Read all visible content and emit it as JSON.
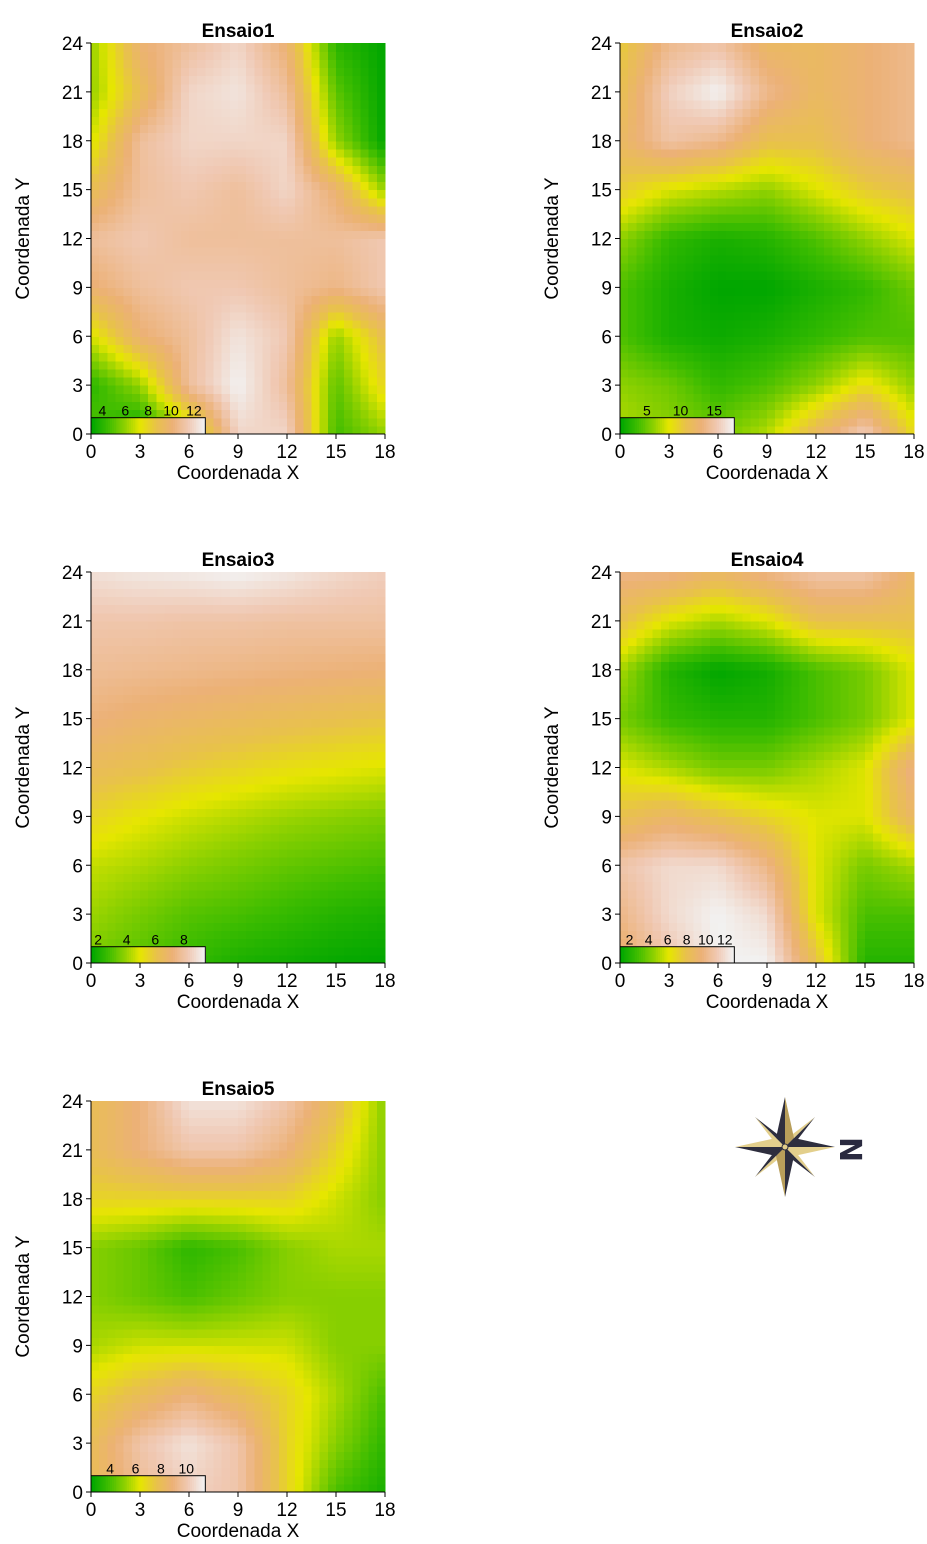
{
  "figure": {
    "compass": {
      "icon": "compass-rose-icon",
      "letter": "N"
    }
  },
  "colors": {
    "ramp": [
      "#00a600",
      "#3cbc00",
      "#8bd000",
      "#e6e600",
      "#e8c24a",
      "#ecb176",
      "#f0c9b4",
      "#f2f2f2"
    ],
    "axis": "#000000"
  },
  "chart_data": [
    {
      "type": "heatmap",
      "title": "Ensaio1",
      "xlabel": "Coordenada X",
      "ylabel": "Coordenada Y",
      "xlim": [
        0,
        18
      ],
      "ylim": [
        0,
        24
      ],
      "xticks": [
        "0",
        "3",
        "6",
        "9",
        "12",
        "15",
        "18"
      ],
      "yticks": [
        "0",
        "3",
        "6",
        "9",
        "12",
        "15",
        "18",
        "21",
        "24"
      ],
      "value_range": [
        3,
        13
      ],
      "legend_ticks": [
        "4",
        "6",
        "8",
        "10",
        "12"
      ],
      "legend_tick_values": [
        4,
        6,
        8,
        10,
        12
      ],
      "grid_step": [
        3,
        3
      ],
      "values": [
        [
          5,
          3,
          6,
          12,
          12,
          4.5,
          6
        ],
        [
          4,
          6,
          11,
          13,
          11,
          5,
          8
        ],
        [
          7,
          10,
          11,
          12.5,
          11.5,
          6,
          9
        ],
        [
          10,
          11,
          11.5,
          11.5,
          11,
          10.5,
          11.5
        ],
        [
          11,
          11.5,
          11,
          11,
          11,
          11,
          11.5
        ],
        [
          9,
          11,
          11.5,
          11,
          12,
          10,
          6
        ],
        [
          7,
          11,
          12,
          12,
          12,
          6,
          3
        ],
        [
          6,
          9,
          12,
          12.5,
          11,
          5,
          3
        ],
        [
          6,
          10,
          11,
          12,
          10,
          4,
          3
        ]
      ]
    },
    {
      "type": "heatmap",
      "title": "Ensaio2",
      "xlabel": "Coordenada X",
      "ylabel": "Coordenada Y",
      "xlim": [
        0,
        18
      ],
      "ylim": [
        0,
        24
      ],
      "xticks": [
        "0",
        "3",
        "6",
        "9",
        "12",
        "15",
        "18"
      ],
      "yticks": [
        "0",
        "3",
        "6",
        "9",
        "12",
        "15",
        "18",
        "21",
        "24"
      ],
      "value_range": [
        1,
        18
      ],
      "legend_ticks": [
        "5",
        "10",
        "15"
      ],
      "legend_tick_values": [
        5,
        10,
        15
      ],
      "grid_step": [
        3,
        3
      ],
      "values": [
        [
          7,
          6,
          5,
          7,
          12,
          16,
          9
        ],
        [
          6,
          5,
          3,
          4,
          6,
          9,
          6
        ],
        [
          4,
          2,
          1.5,
          2,
          3,
          4,
          4
        ],
        [
          4,
          2,
          1,
          1,
          2,
          3,
          5
        ],
        [
          6,
          3,
          2,
          2.5,
          4,
          6,
          8
        ],
        [
          10,
          8,
          7,
          6,
          8,
          10,
          11
        ],
        [
          12,
          15,
          14,
          11,
          11,
          13,
          14
        ],
        [
          11,
          16,
          18,
          14,
          12,
          13,
          14
        ],
        [
          10,
          14,
          15,
          12,
          12,
          13,
          14
        ]
      ]
    },
    {
      "type": "heatmap",
      "title": "Ensaio3",
      "xlabel": "Coordenada X",
      "ylabel": "Coordenada Y",
      "xlim": [
        0,
        18
      ],
      "ylim": [
        0,
        24
      ],
      "xticks": [
        "0",
        "3",
        "6",
        "9",
        "12",
        "15",
        "18"
      ],
      "yticks": [
        "0",
        "3",
        "6",
        "9",
        "12",
        "15",
        "18",
        "21",
        "24"
      ],
      "value_range": [
        1.5,
        9.5
      ],
      "legend_ticks": [
        "2",
        "4",
        "6",
        "8"
      ],
      "legend_tick_values": [
        2,
        4,
        6,
        8
      ],
      "grid_step": [
        3,
        3
      ],
      "values": [
        [
          3.5,
          3,
          2.5,
          2,
          1.8,
          1.6,
          1.5
        ],
        [
          4,
          3.5,
          3,
          2.8,
          2.5,
          2.2,
          2
        ],
        [
          4.5,
          4.2,
          3.8,
          3.5,
          3.2,
          3,
          2.8
        ],
        [
          5.5,
          5,
          4.6,
          4.3,
          4,
          3.8,
          3.6
        ],
        [
          6.5,
          6.2,
          5.8,
          5.5,
          5.2,
          5,
          4.8
        ],
        [
          7.3,
          7,
          6.8,
          6.6,
          6.4,
          6.2,
          6
        ],
        [
          7.8,
          7.7,
          7.6,
          7.5,
          7.4,
          7.3,
          7.2
        ],
        [
          8.2,
          8.2,
          8.1,
          8.1,
          8,
          8,
          8
        ],
        [
          9,
          9.2,
          9.3,
          9.5,
          9.2,
          8.8,
          8.5
        ]
      ]
    },
    {
      "type": "heatmap",
      "title": "Ensaio4",
      "xlabel": "Coordenada X",
      "ylabel": "Coordenada Y",
      "xlim": [
        0,
        18
      ],
      "ylim": [
        0,
        24
      ],
      "xticks": [
        "0",
        "3",
        "6",
        "9",
        "12",
        "15",
        "18"
      ],
      "yticks": [
        "0",
        "3",
        "6",
        "9",
        "12",
        "15",
        "18",
        "21",
        "24"
      ],
      "value_range": [
        1,
        13
      ],
      "legend_ticks": [
        "2",
        "4",
        "6",
        "8",
        "10",
        "12"
      ],
      "legend_tick_values": [
        2,
        4,
        6,
        8,
        10,
        12
      ],
      "grid_step": [
        3,
        3
      ],
      "values": [
        [
          9,
          11,
          13,
          13,
          8,
          2,
          2
        ],
        [
          10,
          12,
          13,
          12,
          6,
          3,
          3
        ],
        [
          11,
          12,
          12,
          10,
          6,
          4,
          5
        ],
        [
          8,
          9,
          8,
          7,
          6,
          6,
          9
        ],
        [
          6,
          5,
          4,
          4,
          5,
          6,
          10
        ],
        [
          4,
          2.5,
          2,
          2,
          3,
          4,
          6
        ],
        [
          5,
          2,
          1,
          1.5,
          3,
          4,
          6
        ],
        [
          8,
          6,
          5,
          6,
          8,
          8,
          8
        ],
        [
          10,
          10,
          9,
          10,
          11,
          11,
          9
        ]
      ]
    },
    {
      "type": "heatmap",
      "title": "Ensaio5",
      "xlabel": "Coordenada X",
      "ylabel": "Coordenada Y",
      "xlim": [
        0,
        18
      ],
      "ylim": [
        0,
        24
      ],
      "xticks": [
        "0",
        "3",
        "6",
        "9",
        "12",
        "15",
        "18"
      ],
      "yticks": [
        "0",
        "3",
        "6",
        "9",
        "12",
        "15",
        "18",
        "21",
        "24"
      ],
      "value_range": [
        2.5,
        11.5
      ],
      "legend_ticks": [
        "4",
        "6",
        "8",
        "10"
      ],
      "legend_tick_values": [
        4,
        6,
        8,
        10
      ],
      "grid_step": [
        3,
        3
      ],
      "values": [
        [
          8,
          9.5,
          10.5,
          10,
          7,
          4,
          3
        ],
        [
          8,
          10,
          11,
          10,
          7,
          5,
          3.5
        ],
        [
          7,
          8,
          9,
          8,
          7,
          5.5,
          4
        ],
        [
          5.5,
          6,
          6,
          6,
          6,
          5,
          5
        ],
        [
          5,
          4.5,
          4,
          4.5,
          5,
          5,
          5
        ],
        [
          5,
          4.5,
          3.5,
          4,
          5,
          5.5,
          5.5
        ],
        [
          7,
          7,
          7,
          7,
          7,
          6,
          5
        ],
        [
          8,
          9,
          10,
          10,
          9,
          7,
          5
        ],
        [
          8,
          9,
          11,
          11,
          10,
          8,
          5
        ]
      ]
    }
  ]
}
